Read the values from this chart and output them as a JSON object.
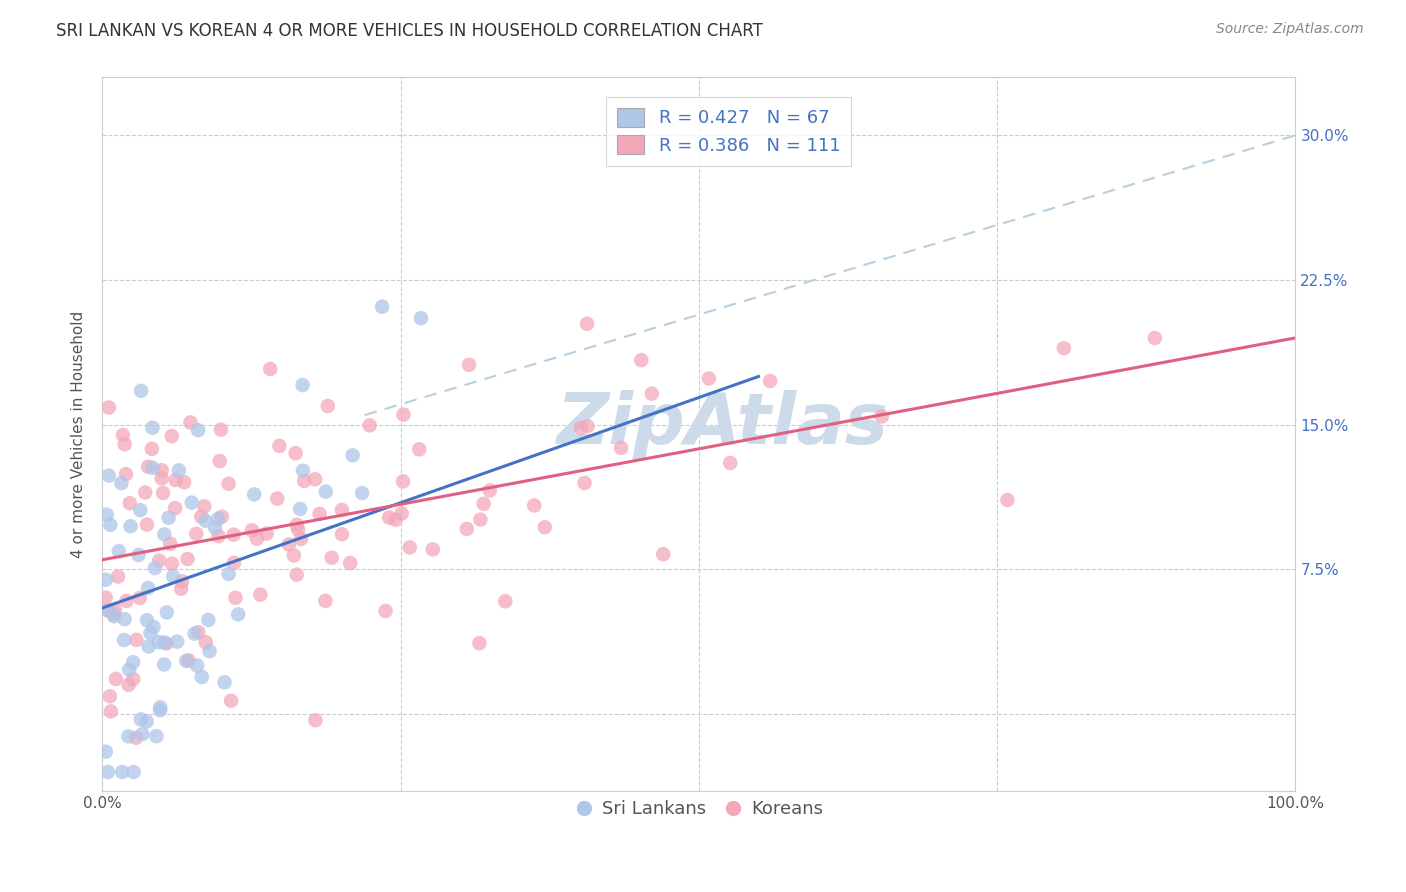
{
  "title": "SRI LANKAN VS KOREAN 4 OR MORE VEHICLES IN HOUSEHOLD CORRELATION CHART",
  "source": "Source: ZipAtlas.com",
  "ylabel": "4 or more Vehicles in Household",
  "ytick_vals": [
    0.0,
    7.5,
    15.0,
    22.5,
    30.0
  ],
  "ytick_labels": [
    "",
    "7.5%",
    "15.0%",
    "22.5%",
    "30.0%"
  ],
  "xlim": [
    0.0,
    100.0
  ],
  "ylim": [
    -4.0,
    33.0
  ],
  "sri_lankan_color": "#aec6e8",
  "korean_color": "#f4a7b9",
  "sri_lankan_line_color": "#4472c4",
  "korean_line_color": "#e06080",
  "dashed_line_color": "#b8cfe0",
  "watermark_color": "#ccdaea",
  "legend_r1_val": "0.427",
  "legend_n1_val": "67",
  "legend_r2_val": "0.386",
  "legend_n2_val": "111",
  "legend_label1": "Sri Lankans",
  "legend_label2": "Koreans",
  "sri_r": 0.427,
  "sri_n": 67,
  "korean_r": 0.386,
  "korean_n": 111,
  "title_fontsize": 12,
  "source_fontsize": 10,
  "axis_label_fontsize": 11,
  "tick_fontsize": 11,
  "legend_fontsize": 13,
  "watermark_fontsize": 52,
  "sri_line_x0": 0.0,
  "sri_line_y0": 5.5,
  "sri_line_x1": 55.0,
  "sri_line_y1": 17.5,
  "kor_line_x0": 0.0,
  "kor_line_y0": 8.0,
  "kor_line_x1": 100.0,
  "kor_line_y1": 19.5,
  "dash_line_x0": 22.0,
  "dash_line_y0": 15.5,
  "dash_line_x1": 100.0,
  "dash_line_y1": 30.0
}
